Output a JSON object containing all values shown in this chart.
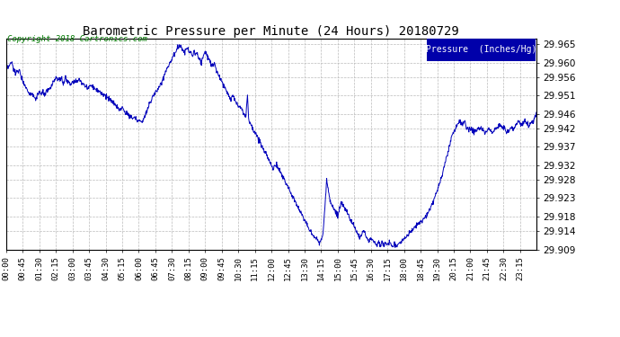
{
  "title": "Barometric Pressure per Minute (24 Hours) 20180729",
  "copyright": "Copyright 2018 Cartronics.com",
  "legend_label": "Pressure  (Inches/Hg)",
  "ylim": [
    29.909,
    29.9665
  ],
  "yticks": [
    29.909,
    29.914,
    29.918,
    29.923,
    29.928,
    29.932,
    29.937,
    29.942,
    29.946,
    29.951,
    29.956,
    29.96,
    29.965
  ],
  "line_color": "#0000bb",
  "bg_color": "#ffffff",
  "grid_color": "#bbbbbb",
  "title_color": "#000000",
  "copyright_color": "#007700",
  "x_labels": [
    "00:00",
    "00:45",
    "01:30",
    "02:15",
    "03:00",
    "03:45",
    "04:30",
    "05:15",
    "06:00",
    "06:45",
    "07:30",
    "08:15",
    "09:00",
    "09:45",
    "10:30",
    "11:15",
    "12:00",
    "12:45",
    "13:30",
    "14:15",
    "15:00",
    "15:45",
    "16:30",
    "17:15",
    "18:00",
    "18:45",
    "19:30",
    "20:15",
    "21:00",
    "21:45",
    "22:30",
    "23:15"
  ],
  "keypoints": [
    [
      0,
      29.958
    ],
    [
      15,
      29.96
    ],
    [
      25,
      29.957
    ],
    [
      35,
      29.958
    ],
    [
      45,
      29.955
    ],
    [
      60,
      29.952
    ],
    [
      75,
      29.951
    ],
    [
      80,
      29.95
    ],
    [
      90,
      29.952
    ],
    [
      95,
      29.951
    ],
    [
      100,
      29.952
    ],
    [
      105,
      29.951
    ],
    [
      110,
      29.952
    ],
    [
      120,
      29.953
    ],
    [
      130,
      29.955
    ],
    [
      135,
      29.956
    ],
    [
      145,
      29.955
    ],
    [
      150,
      29.956
    ],
    [
      155,
      29.954
    ],
    [
      160,
      29.956
    ],
    [
      165,
      29.955
    ],
    [
      175,
      29.954
    ],
    [
      180,
      29.955
    ],
    [
      190,
      29.955
    ],
    [
      200,
      29.955
    ],
    [
      210,
      29.954
    ],
    [
      220,
      29.953
    ],
    [
      230,
      29.954
    ],
    [
      240,
      29.953
    ],
    [
      255,
      29.952
    ],
    [
      270,
      29.951
    ],
    [
      280,
      29.95
    ],
    [
      290,
      29.949
    ],
    [
      300,
      29.948
    ],
    [
      310,
      29.947
    ],
    [
      315,
      29.948
    ],
    [
      320,
      29.947
    ],
    [
      325,
      29.946
    ],
    [
      330,
      29.946
    ],
    [
      340,
      29.945
    ],
    [
      350,
      29.945
    ],
    [
      360,
      29.944
    ],
    [
      365,
      29.944
    ],
    [
      370,
      29.944
    ],
    [
      375,
      29.945
    ],
    [
      385,
      29.948
    ],
    [
      395,
      29.95
    ],
    [
      405,
      29.952
    ],
    [
      415,
      29.953
    ],
    [
      420,
      29.954
    ],
    [
      430,
      29.957
    ],
    [
      440,
      29.959
    ],
    [
      450,
      29.961
    ],
    [
      460,
      29.963
    ],
    [
      465,
      29.964
    ],
    [
      470,
      29.965
    ],
    [
      475,
      29.964
    ],
    [
      480,
      29.963
    ],
    [
      485,
      29.963
    ],
    [
      490,
      29.964
    ],
    [
      495,
      29.963
    ],
    [
      500,
      29.963
    ],
    [
      505,
      29.962
    ],
    [
      510,
      29.963
    ],
    [
      520,
      29.962
    ],
    [
      525,
      29.961
    ],
    [
      530,
      29.96
    ],
    [
      535,
      29.962
    ],
    [
      540,
      29.963
    ],
    [
      545,
      29.962
    ],
    [
      550,
      29.961
    ],
    [
      555,
      29.96
    ],
    [
      560,
      29.959
    ],
    [
      565,
      29.96
    ],
    [
      570,
      29.958
    ],
    [
      575,
      29.957
    ],
    [
      580,
      29.956
    ],
    [
      585,
      29.955
    ],
    [
      590,
      29.954
    ],
    [
      595,
      29.953
    ],
    [
      600,
      29.952
    ],
    [
      605,
      29.951
    ],
    [
      610,
      29.95
    ],
    [
      615,
      29.951
    ],
    [
      620,
      29.95
    ],
    [
      625,
      29.949
    ],
    [
      630,
      29.948
    ],
    [
      635,
      29.948
    ],
    [
      640,
      29.947
    ],
    [
      645,
      29.946
    ],
    [
      650,
      29.945
    ],
    [
      655,
      29.951
    ],
    [
      658,
      29.945
    ],
    [
      660,
      29.944
    ],
    [
      665,
      29.943
    ],
    [
      670,
      29.942
    ],
    [
      675,
      29.941
    ],
    [
      680,
      29.94
    ],
    [
      685,
      29.939
    ],
    [
      690,
      29.938
    ],
    [
      695,
      29.937
    ],
    [
      700,
      29.936
    ],
    [
      705,
      29.935
    ],
    [
      710,
      29.934
    ],
    [
      715,
      29.933
    ],
    [
      720,
      29.932
    ],
    [
      725,
      29.931
    ],
    [
      730,
      29.932
    ],
    [
      735,
      29.932
    ],
    [
      740,
      29.931
    ],
    [
      745,
      29.93
    ],
    [
      750,
      29.929
    ],
    [
      755,
      29.928
    ],
    [
      760,
      29.927
    ],
    [
      765,
      29.926
    ],
    [
      770,
      29.925
    ],
    [
      775,
      29.924
    ],
    [
      780,
      29.923
    ],
    [
      785,
      29.922
    ],
    [
      790,
      29.921
    ],
    [
      795,
      29.92
    ],
    [
      800,
      29.919
    ],
    [
      805,
      29.918
    ],
    [
      810,
      29.917
    ],
    [
      815,
      29.916
    ],
    [
      820,
      29.915
    ],
    [
      825,
      29.914
    ],
    [
      830,
      29.913
    ],
    [
      840,
      29.912
    ],
    [
      850,
      29.911
    ],
    [
      860,
      29.913
    ],
    [
      870,
      29.928
    ],
    [
      875,
      29.925
    ],
    [
      880,
      29.922
    ],
    [
      885,
      29.921
    ],
    [
      890,
      29.92
    ],
    [
      895,
      29.919
    ],
    [
      900,
      29.918
    ],
    [
      905,
      29.92
    ],
    [
      910,
      29.922
    ],
    [
      915,
      29.921
    ],
    [
      920,
      29.92
    ],
    [
      925,
      29.919
    ],
    [
      930,
      29.918
    ],
    [
      935,
      29.917
    ],
    [
      940,
      29.916
    ],
    [
      945,
      29.915
    ],
    [
      950,
      29.914
    ],
    [
      955,
      29.913
    ],
    [
      960,
      29.912
    ],
    [
      965,
      29.913
    ],
    [
      970,
      29.914
    ],
    [
      975,
      29.913
    ],
    [
      980,
      29.912
    ],
    [
      985,
      29.911
    ],
    [
      990,
      29.912
    ],
    [
      1000,
      29.911
    ],
    [
      1005,
      29.91
    ],
    [
      1010,
      29.911
    ],
    [
      1015,
      29.91
    ],
    [
      1020,
      29.911
    ],
    [
      1025,
      29.91
    ],
    [
      1030,
      29.911
    ],
    [
      1035,
      29.91
    ],
    [
      1040,
      29.911
    ],
    [
      1045,
      29.91
    ],
    [
      1050,
      29.91
    ],
    [
      1060,
      29.91
    ],
    [
      1070,
      29.911
    ],
    [
      1080,
      29.912
    ],
    [
      1090,
      29.913
    ],
    [
      1100,
      29.914
    ],
    [
      1110,
      29.915
    ],
    [
      1120,
      29.916
    ],
    [
      1130,
      29.917
    ],
    [
      1140,
      29.918
    ],
    [
      1150,
      29.92
    ],
    [
      1160,
      29.922
    ],
    [
      1170,
      29.925
    ],
    [
      1180,
      29.928
    ],
    [
      1190,
      29.932
    ],
    [
      1200,
      29.936
    ],
    [
      1210,
      29.94
    ],
    [
      1220,
      29.942
    ],
    [
      1230,
      29.944
    ],
    [
      1240,
      29.943
    ],
    [
      1245,
      29.944
    ],
    [
      1250,
      29.942
    ],
    [
      1260,
      29.942
    ],
    [
      1270,
      29.941
    ],
    [
      1280,
      29.942
    ],
    [
      1290,
      29.942
    ],
    [
      1300,
      29.941
    ],
    [
      1310,
      29.942
    ],
    [
      1320,
      29.941
    ],
    [
      1330,
      29.942
    ],
    [
      1340,
      29.943
    ],
    [
      1350,
      29.942
    ],
    [
      1360,
      29.941
    ],
    [
      1370,
      29.942
    ],
    [
      1380,
      29.942
    ],
    [
      1390,
      29.944
    ],
    [
      1400,
      29.943
    ],
    [
      1410,
      29.944
    ],
    [
      1420,
      29.943
    ],
    [
      1430,
      29.944
    ],
    [
      1439,
      29.946
    ]
  ]
}
